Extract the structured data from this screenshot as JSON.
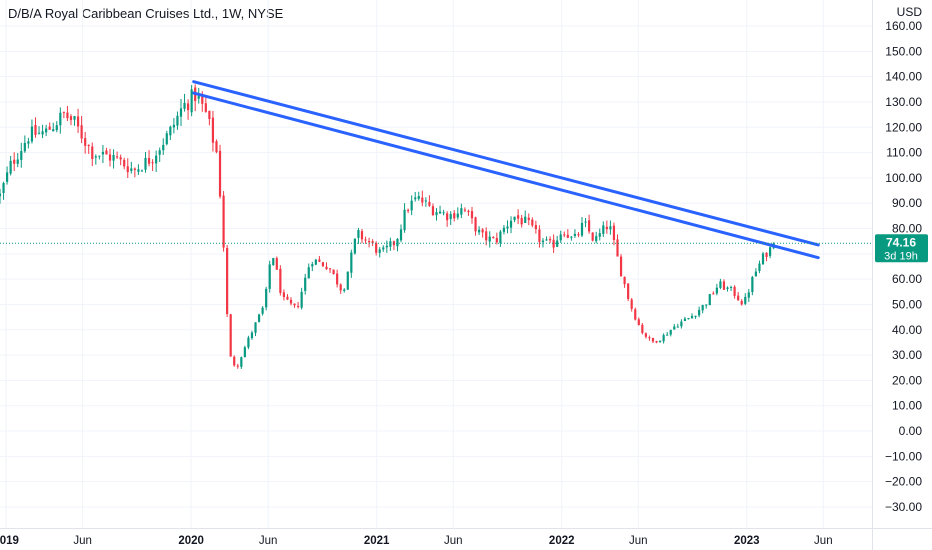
{
  "header": {
    "title": "D/B/A Royal Caribbean Cruises Ltd., 1W, NYSE"
  },
  "colors": {
    "up": "#089981",
    "down": "#f23645",
    "trendline": "#2962ff",
    "grid": "#f0f3fa",
    "badge": "#089981",
    "text": "#131722"
  },
  "chart_data": {
    "type": "candlestick",
    "interval": "1W",
    "currency_label": "USD",
    "y_axis": {
      "ylim": [
        -35,
        165
      ],
      "ticks": [
        160,
        150,
        140,
        130,
        120,
        110,
        100,
        90,
        80,
        70,
        60,
        50,
        40,
        30,
        20,
        10,
        0,
        -10,
        -20,
        -30
      ],
      "tick_labels": [
        "160.00",
        "150.00",
        "140.00",
        "130.00",
        "120.00",
        "110.00",
        "100.00",
        "90.00",
        "80.00",
        "70.00",
        "60.00",
        "50.00",
        "40.00",
        "30.00",
        "20.00",
        "10.00",
        "0.00",
        "−10.00",
        "−20.00",
        "−30.00"
      ]
    },
    "x_axis": {
      "range": [
        "2018-12-20",
        "2023-09-05"
      ],
      "ticks": [
        {
          "date": "2019-01-01",
          "label": "2019",
          "major": true
        },
        {
          "date": "2019-06-01",
          "label": "Jun",
          "major": false
        },
        {
          "date": "2020-01-01",
          "label": "2020",
          "major": true
        },
        {
          "date": "2020-06-01",
          "label": "Jun",
          "major": false
        },
        {
          "date": "2021-01-01",
          "label": "2021",
          "major": true
        },
        {
          "date": "2021-06-01",
          "label": "Jun",
          "major": false
        },
        {
          "date": "2022-01-01",
          "label": "2022",
          "major": true
        },
        {
          "date": "2022-06-01",
          "label": "Jun",
          "major": false
        },
        {
          "date": "2023-01-01",
          "label": "2023",
          "major": true
        },
        {
          "date": "2023-06-01",
          "label": "Jun",
          "major": false
        }
      ]
    },
    "price_path": [
      [
        "2018-12-20",
        93
      ],
      [
        "2019-01-10",
        105
      ],
      [
        "2019-02-15",
        117
      ],
      [
        "2019-03-20",
        118
      ],
      [
        "2019-04-25",
        125
      ],
      [
        "2019-05-15",
        122
      ],
      [
        "2019-06-20",
        110
      ],
      [
        "2019-08-01",
        108
      ],
      [
        "2019-09-10",
        103
      ],
      [
        "2019-10-15",
        108
      ],
      [
        "2019-11-20",
        118
      ],
      [
        "2019-12-15",
        128
      ],
      [
        "2020-01-10",
        133
      ],
      [
        "2020-01-31",
        125
      ],
      [
        "2020-02-20",
        110
      ],
      [
        "2020-03-02",
        85
      ],
      [
        "2020-03-16",
        30
      ],
      [
        "2020-03-30",
        25
      ],
      [
        "2020-04-20",
        35
      ],
      [
        "2020-05-25",
        50
      ],
      [
        "2020-06-08",
        72
      ],
      [
        "2020-06-29",
        52
      ],
      [
        "2020-07-27",
        48
      ],
      [
        "2020-08-24",
        68
      ],
      [
        "2020-09-28",
        65
      ],
      [
        "2020-10-26",
        55
      ],
      [
        "2020-11-23",
        78
      ],
      [
        "2020-12-14",
        75
      ],
      [
        "2021-01-10",
        70
      ],
      [
        "2021-02-08",
        75
      ],
      [
        "2021-03-01",
        88
      ],
      [
        "2021-03-22",
        92
      ],
      [
        "2021-04-19",
        88
      ],
      [
        "2021-05-24",
        85
      ],
      [
        "2021-06-21",
        88
      ],
      [
        "2021-07-26",
        77
      ],
      [
        "2021-08-23",
        75
      ],
      [
        "2021-09-27",
        85
      ],
      [
        "2021-10-25",
        82
      ],
      [
        "2021-11-22",
        75
      ],
      [
        "2021-12-13",
        73
      ],
      [
        "2022-01-03",
        80
      ],
      [
        "2022-01-24",
        75
      ],
      [
        "2022-02-14",
        82
      ],
      [
        "2022-03-07",
        75
      ],
      [
        "2022-04-04",
        82
      ],
      [
        "2022-04-25",
        65
      ],
      [
        "2022-05-16",
        50
      ],
      [
        "2022-06-06",
        40
      ],
      [
        "2022-06-27",
        35
      ],
      [
        "2022-07-18",
        37
      ],
      [
        "2022-08-15",
        42
      ],
      [
        "2022-09-12",
        45
      ],
      [
        "2022-10-10",
        50
      ],
      [
        "2022-11-07",
        58
      ],
      [
        "2022-12-05",
        55
      ],
      [
        "2022-12-26",
        50
      ],
      [
        "2023-01-16",
        62
      ],
      [
        "2023-02-06",
        70
      ],
      [
        "2023-02-27",
        74.16
      ]
    ],
    "trendlines": [
      {
        "start": [
          "2020-01-06",
          138
        ],
        "end": [
          "2023-05-22",
          73.5
        ]
      },
      {
        "start": [
          "2020-01-06",
          133.5
        ],
        "end": [
          "2023-05-22",
          68.5
        ]
      }
    ],
    "last_price": {
      "value": 74.16,
      "label": "74.16",
      "countdown": "3d 19h"
    }
  }
}
